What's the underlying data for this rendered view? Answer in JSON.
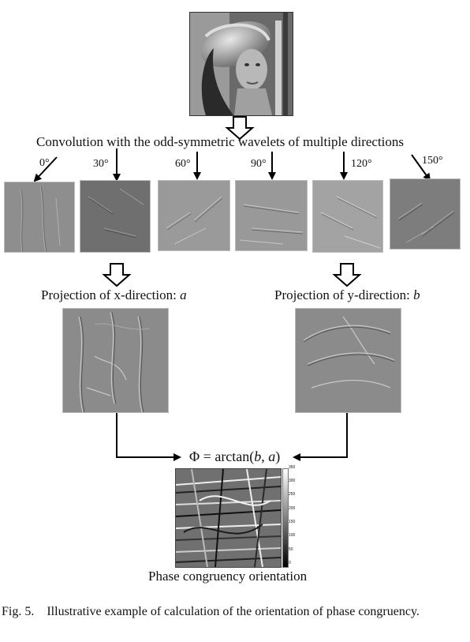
{
  "header_text": "Convolution with the odd-symmetric wavelets of multiple directions",
  "angles": [
    "0°",
    "30°",
    "60°",
    "90°",
    "120°",
    "150°"
  ],
  "proj_x": {
    "prefix": "Projection of x-direction: ",
    "var": "a"
  },
  "proj_y": {
    "prefix": "Projection of y-direction: ",
    "var": "b"
  },
  "formula": {
    "lhs": "Φ",
    "eq": " = arctan(",
    "b": "b",
    "comma": ", ",
    "a": "a",
    "close": ")"
  },
  "colorbar_ticks": [
    "350",
    "300",
    "250",
    "200",
    "150",
    "100",
    "50",
    "0"
  ],
  "result_label": "Phase congruency orientation",
  "caption": {
    "label": "Fig. 5.",
    "text": "Illustrative example of calculation of the orientation of phase congruency."
  },
  "colors": {
    "tile_gray": "#8a8a8a",
    "edge_light": "#c8c8c8",
    "edge_dark": "#4a4a4a"
  }
}
